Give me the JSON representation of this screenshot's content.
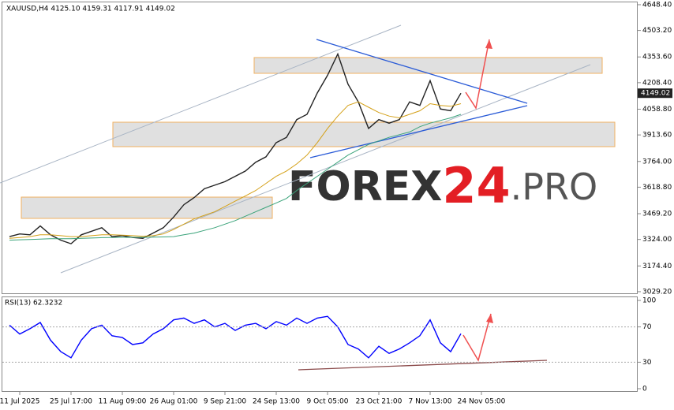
{
  "header": "XAUUSD,H4  4125.10 4159.31 4117.91 4149.02",
  "rsi_header": "RSI(13) 62.3232",
  "watermark": [
    "FOREX",
    "24",
    ".PRO"
  ],
  "chart_data": [
    {
      "type": "line",
      "categories": [
        null,
        "11 Jul 2025",
        null,
        null,
        null,
        null,
        "25 Jul 17:00",
        null,
        null,
        null,
        null,
        "11 Aug 09:00",
        null,
        null,
        null,
        null,
        "26 Aug 01:00",
        null,
        null,
        null,
        null,
        "9 Sep 21:00",
        null,
        null,
        null,
        null,
        "24 Sep 13:00",
        null,
        null,
        null,
        null,
        "9 Oct 05:00",
        null,
        null,
        null,
        null,
        "23 Oct 21:00",
        null,
        null,
        null,
        null,
        "7 Nov 13:00",
        null,
        null,
        null,
        null,
        "24 Nov 05:00"
      ],
      "series": [
        {
          "color": "#222222",
          "values": [
            3340,
            3355,
            3350,
            3400,
            3350,
            3320,
            3300,
            3350,
            3370,
            3390,
            3340,
            3345,
            3335,
            3330,
            3360,
            3390,
            3450,
            3520,
            3560,
            3610,
            3630,
            3650,
            3680,
            3710,
            3760,
            3790,
            3870,
            3900,
            4000,
            4030,
            4150,
            4250,
            4370,
            4200,
            4100,
            3950,
            4000,
            3980,
            4000,
            4100,
            4080,
            4220,
            4060,
            4050,
            4149.02,
            null,
            null
          ]
        },
        {
          "color": "#d4a017",
          "values": [
            3330,
            3335,
            3340,
            3350,
            3350,
            3345,
            3340,
            3340,
            3345,
            3350,
            3350,
            3348,
            3345,
            3342,
            3345,
            3355,
            3380,
            3410,
            3440,
            3460,
            3480,
            3510,
            3540,
            3570,
            3600,
            3640,
            3680,
            3710,
            3750,
            3800,
            3870,
            3950,
            4020,
            4080,
            4100,
            4070,
            4040,
            4020,
            4010,
            4030,
            4050,
            4090,
            4080,
            4075,
            4090,
            null,
            null
          ]
        },
        {
          "color": "#3aa37a",
          "values": [
            3320,
            3322,
            3324,
            3326,
            3328,
            3328,
            3328,
            3330,
            3332,
            3334,
            3335,
            3336,
            3336,
            3336,
            3337,
            3338,
            3340,
            3350,
            3360,
            3375,
            3390,
            3410,
            3430,
            3455,
            3480,
            3505,
            3530,
            3555,
            3600,
            3640,
            3680,
            3720,
            3760,
            3800,
            3830,
            3860,
            3880,
            3900,
            3915,
            3930,
            3960,
            3980,
            3995,
            4010,
            4030,
            null,
            null
          ]
        }
      ],
      "ylim": [
        3020,
        4666
      ],
      "yticks": [
        {
          "value": 4648.4,
          "label": "4648.40"
        },
        {
          "value": 4503.2,
          "label": "4503.20"
        },
        {
          "value": 4353.6,
          "label": "4353.60"
        },
        {
          "value": 4208.4,
          "label": "4208.40"
        },
        {
          "value": 4058.8,
          "label": "4058.80"
        },
        {
          "value": 3913.6,
          "label": "3913.60"
        },
        {
          "value": 3764,
          "label": "3764.00"
        },
        {
          "value": 3618.8,
          "label": "3618.80"
        },
        {
          "value": 3469.2,
          "label": "3469.20"
        },
        {
          "value": 3324,
          "label": "3324.00"
        },
        {
          "value": 3174.4,
          "label": "3174.40"
        },
        {
          "value": 3029.2,
          "label": "3029.20"
        }
      ],
      "last_price": 4149.02,
      "grid": false
    },
    {
      "type": "line",
      "series": [
        {
          "color": "#0000ff",
          "values": [
            72,
            62,
            68,
            75,
            55,
            42,
            35,
            55,
            68,
            72,
            60,
            58,
            50,
            52,
            62,
            68,
            78,
            80,
            74,
            78,
            70,
            74,
            66,
            72,
            74,
            68,
            76,
            72,
            80,
            74,
            80,
            82,
            70,
            50,
            45,
            35,
            48,
            40,
            45,
            52,
            60,
            78,
            52,
            42,
            62.3232,
            null,
            null
          ]
        }
      ],
      "ylim": [
        -3.6,
        103.6
      ],
      "yticks": [
        0,
        30,
        70,
        100
      ],
      "grid": false
    }
  ]
}
